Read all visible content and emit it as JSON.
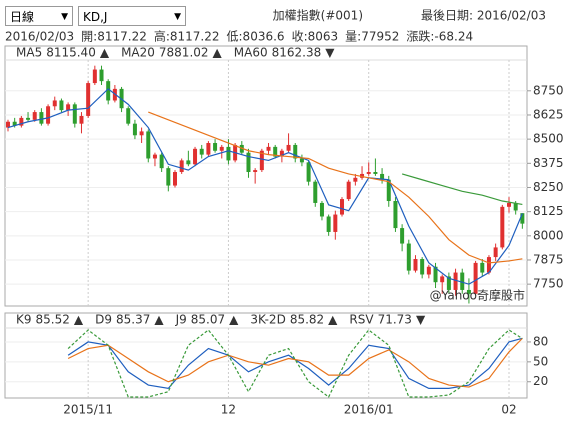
{
  "toolbar": {
    "period": "日線",
    "indicator": "KD,J",
    "index_name": "加權指數(#001)",
    "last_date_label": "最後日期: 2016/02/03"
  },
  "quote": [
    "2016/02/03",
    "開:8117.22",
    "高:8117.22",
    "低:8036.6",
    "收:8063",
    "量:77952",
    "漲跌:-68.24"
  ],
  "chart_data": [
    {
      "type": "candlestick",
      "watermark": "@Yahoo奇摩股市",
      "categories": [
        null,
        null,
        null,
        null,
        null,
        null,
        null,
        null,
        null,
        null,
        null,
        null,
        "2015/11",
        null,
        null,
        null,
        null,
        null,
        null,
        null,
        null,
        null,
        null,
        null,
        null,
        null,
        null,
        null,
        null,
        null,
        null,
        null,
        null,
        "12",
        null,
        null,
        null,
        null,
        null,
        null,
        null,
        null,
        null,
        null,
        null,
        null,
        null,
        null,
        null,
        null,
        null,
        null,
        null,
        null,
        "2016/01",
        null,
        null,
        null,
        null,
        null,
        null,
        null,
        null,
        null,
        null,
        null,
        null,
        null,
        null,
        null,
        null,
        null,
        null,
        null,
        null,
        "02",
        null,
        null
      ],
      "open": [
        8560,
        8590,
        8570,
        8610,
        8600,
        8640,
        8580,
        8670,
        8700,
        8650,
        8680,
        8580,
        8620,
        8790,
        8860,
        8800,
        8700,
        8760,
        8660,
        8580,
        8520,
        8540,
        8400,
        8420,
        8350,
        8260,
        8330,
        8390,
        8370,
        8450,
        8420,
        8480,
        8440,
        8460,
        8390,
        8470,
        8430,
        8330,
        8340,
        8440,
        8460,
        8410,
        8440,
        8470,
        8400,
        8380,
        8280,
        8170,
        8100,
        8020,
        8110,
        8190,
        8280,
        8300,
        8320,
        8330,
        8320,
        8290,
        8180,
        8040,
        7960,
        7820,
        7880,
        7800,
        7840,
        7760,
        7790,
        7720,
        7810,
        7720,
        7700,
        7860,
        7810,
        7890,
        7940,
        8150,
        8170,
        8117.22
      ],
      "high": [
        8600,
        8610,
        8620,
        8640,
        8650,
        8660,
        8680,
        8720,
        8710,
        8690,
        8690,
        8640,
        8800,
        8880,
        8880,
        8810,
        8780,
        8770,
        8670,
        8600,
        8560,
        8550,
        8430,
        8430,
        8360,
        8340,
        8400,
        8440,
        8460,
        8470,
        8490,
        8500,
        8470,
        8500,
        8480,
        8490,
        8450,
        8350,
        8450,
        8480,
        8470,
        8450,
        8530,
        8480,
        8420,
        8390,
        8290,
        8180,
        8110,
        8130,
        8200,
        8290,
        8320,
        8360,
        8380,
        8400,
        8350,
        8310,
        8200,
        8060,
        7980,
        7900,
        7890,
        7850,
        7860,
        7800,
        7810,
        7830,
        7830,
        7780,
        7870,
        7880,
        7900,
        7960,
        8160,
        8200,
        8180,
        8117.22
      ],
      "low": [
        8540,
        8560,
        8560,
        8590,
        8590,
        8570,
        8570,
        8650,
        8640,
        8620,
        8560,
        8530,
        8610,
        8780,
        8780,
        8680,
        8690,
        8640,
        8570,
        8500,
        8480,
        8380,
        8360,
        8330,
        8230,
        8250,
        8320,
        8360,
        8360,
        8400,
        8410,
        8430,
        8400,
        8370,
        8380,
        8420,
        8300,
        8270,
        8330,
        8420,
        8400,
        8380,
        8430,
        8380,
        8360,
        8260,
        8150,
        8080,
        8000,
        7980,
        8100,
        8180,
        8260,
        8290,
        8310,
        8310,
        8270,
        8150,
        8020,
        7920,
        7800,
        7810,
        7780,
        7780,
        7730,
        7700,
        7700,
        7690,
        7700,
        7650,
        7690,
        7790,
        7800,
        7870,
        7930,
        8120,
        8110,
        8036.6
      ],
      "close": [
        8590,
        8570,
        8610,
        8600,
        8640,
        8580,
        8670,
        8700,
        8650,
        8680,
        8580,
        8620,
        8790,
        8860,
        8800,
        8700,
        8760,
        8660,
        8580,
        8520,
        8540,
        8400,
        8420,
        8350,
        8260,
        8330,
        8390,
        8370,
        8450,
        8420,
        8480,
        8440,
        8460,
        8390,
        8470,
        8430,
        8330,
        8340,
        8440,
        8460,
        8410,
        8440,
        8470,
        8400,
        8380,
        8280,
        8170,
        8100,
        8020,
        8110,
        8190,
        8280,
        8300,
        8320,
        8330,
        8320,
        8290,
        8180,
        8040,
        7960,
        7820,
        7880,
        7800,
        7840,
        7760,
        7790,
        7720,
        7810,
        7720,
        7700,
        7860,
        7810,
        7890,
        7940,
        8150,
        8170,
        8131,
        8063
      ],
      "up_color": "#e03030",
      "down_color": "#2e9e2e",
      "series": [
        {
          "name": "MA5",
          "color": "#1f5fbf",
          "legend_value": "8115.40",
          "trend": "▲",
          "x": [
            0,
            3,
            6,
            9,
            12,
            15,
            18,
            21,
            24,
            27,
            30,
            33,
            36,
            39,
            42,
            45,
            48,
            51,
            54,
            57,
            60,
            63,
            66,
            69,
            72,
            75,
            77
          ],
          "values": [
            8560,
            8590,
            8610,
            8650,
            8660,
            8760,
            8680,
            8560,
            8370,
            8340,
            8410,
            8440,
            8410,
            8390,
            8430,
            8390,
            8160,
            8130,
            8300,
            8290,
            8050,
            7860,
            7780,
            7750,
            7810,
            7950,
            8115.4
          ]
        },
        {
          "name": "MA20",
          "color": "#e8731a",
          "legend_value": "7881.02",
          "trend": "▲",
          "x": [
            21,
            24,
            27,
            30,
            33,
            36,
            39,
            42,
            45,
            48,
            51,
            54,
            57,
            60,
            63,
            66,
            69,
            72,
            75,
            77
          ],
          "values": [
            8640,
            8600,
            8560,
            8520,
            8480,
            8440,
            8420,
            8410,
            8400,
            8350,
            8320,
            8300,
            8280,
            8200,
            8100,
            7980,
            7900,
            7860,
            7870,
            7881.02
          ]
        },
        {
          "name": "MA60",
          "color": "#3a9a3a",
          "legend_value": "8162.38",
          "trend": "▼",
          "x": [
            59,
            62,
            65,
            68,
            71,
            74,
            77
          ],
          "values": [
            8320,
            8290,
            8260,
            8230,
            8210,
            8180,
            8162.38
          ]
        }
      ],
      "ylim": [
        7637,
        8899
      ],
      "yticks": [
        7750,
        7875,
        8000,
        8125,
        8250,
        8375,
        8500,
        8625,
        8750
      ],
      "grid": true
    },
    {
      "type": "line",
      "series": [
        {
          "name": "K9",
          "color": "#1f5fbf",
          "legend_value": "85.52",
          "trend": "▲",
          "dash": false,
          "x": [
            9,
            12,
            15,
            18,
            21,
            24,
            27,
            30,
            33,
            36,
            39,
            42,
            45,
            48,
            51,
            54,
            57,
            60,
            63,
            66,
            69,
            72,
            75,
            77
          ],
          "values": [
            60,
            80,
            75,
            35,
            15,
            10,
            45,
            70,
            60,
            35,
            50,
            60,
            40,
            15,
            40,
            75,
            70,
            25,
            10,
            10,
            15,
            40,
            80,
            85.52
          ]
        },
        {
          "name": "D9",
          "color": "#e8731a",
          "legend_value": "85.37",
          "trend": "▲",
          "dash": false,
          "x": [
            9,
            12,
            15,
            18,
            21,
            24,
            27,
            30,
            33,
            36,
            39,
            42,
            45,
            48,
            51,
            54,
            57,
            60,
            63,
            66,
            69,
            72,
            75,
            77
          ],
          "values": [
            55,
            70,
            75,
            55,
            35,
            20,
            30,
            50,
            60,
            50,
            45,
            55,
            50,
            30,
            30,
            55,
            68,
            50,
            25,
            15,
            12,
            25,
            65,
            85.37
          ]
        },
        {
          "name": "J9",
          "color": "#3a9a3a",
          "legend_value": "85.07",
          "trend": "▲",
          "dash": true,
          "x": [
            9,
            12,
            15,
            18,
            21,
            24,
            27,
            30,
            33,
            36,
            39,
            42,
            45,
            48,
            51,
            54,
            57,
            60,
            63,
            66,
            69,
            72,
            75,
            77
          ],
          "values": [
            70,
            98,
            75,
            -3,
            -3,
            5,
            75,
            98,
            60,
            5,
            60,
            70,
            20,
            -3,
            60,
            98,
            75,
            -3,
            -3,
            0,
            20,
            70,
            98,
            85.07
          ]
        }
      ],
      "legend_extra": [
        {
          "name": "3K-2D",
          "color": "#e03030",
          "legend_value": "85.82",
          "trend": "▲"
        },
        {
          "name": "RSV",
          "color": "#1f5fbf",
          "legend_value": "71.73",
          "trend": "▼"
        }
      ],
      "ylim": [
        -3,
        98
      ],
      "yticks": [
        20,
        50,
        80
      ],
      "grid": true
    }
  ]
}
